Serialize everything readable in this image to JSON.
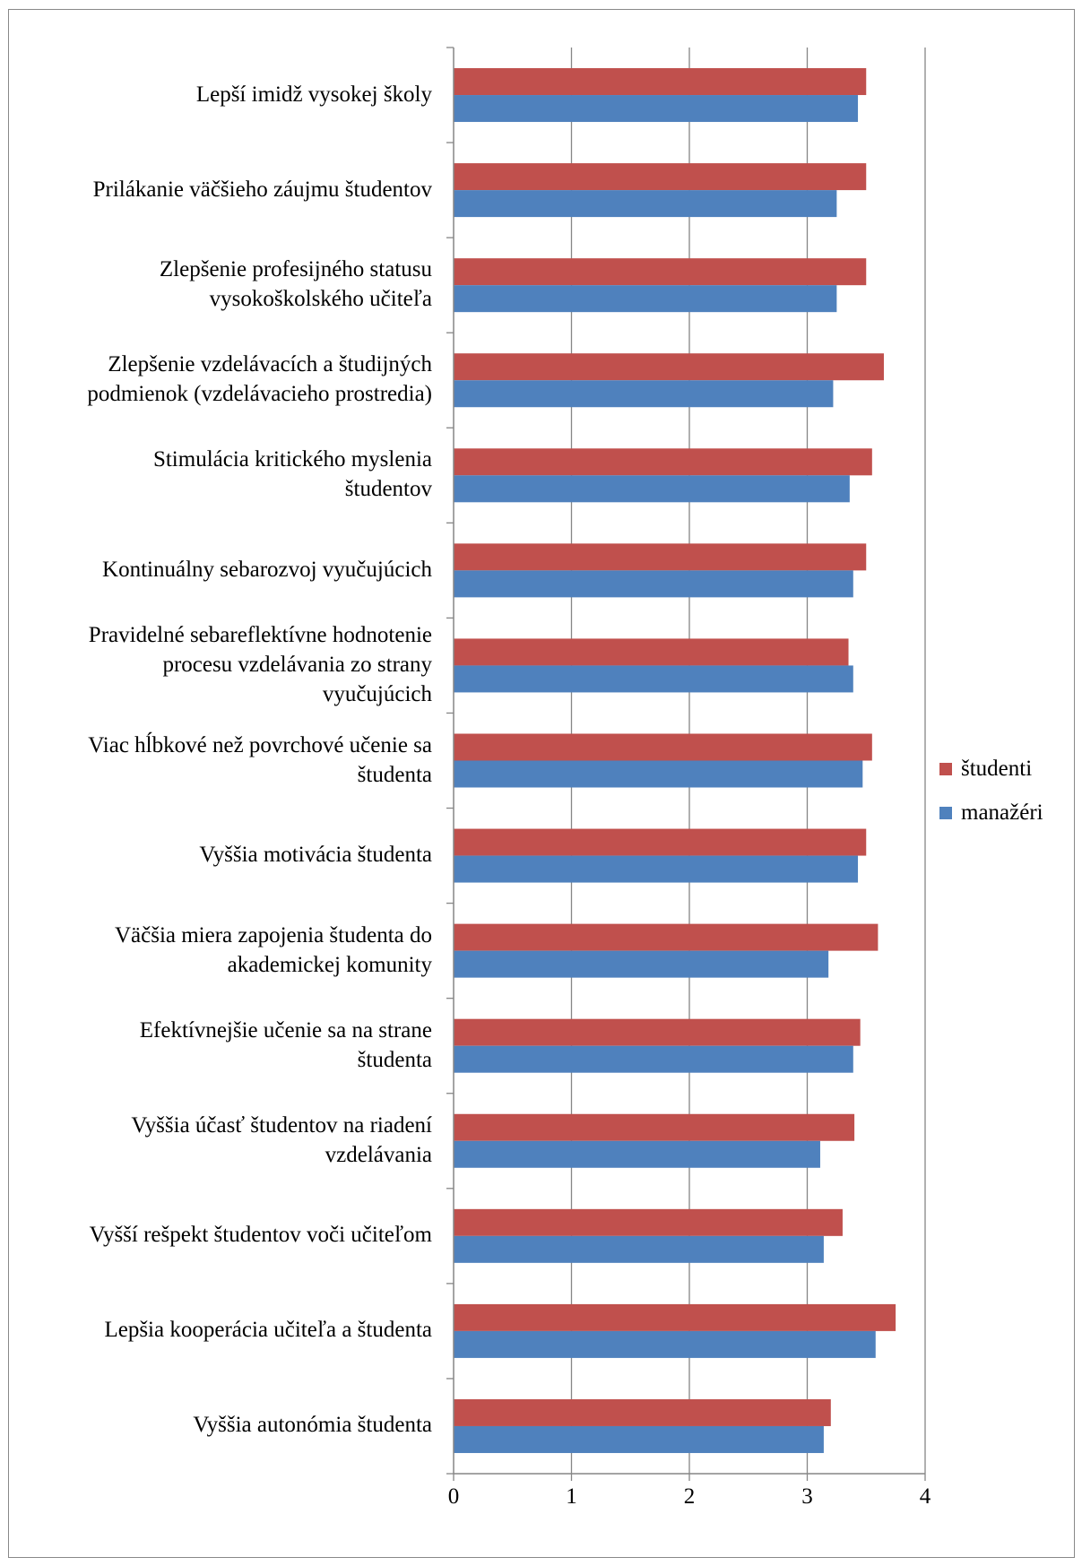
{
  "chart_data": {
    "type": "bar",
    "orientation": "horizontal",
    "categories": [
      "Lepší imidž vysokej školy",
      "Prilákanie väčšieho záujmu študentov",
      "Zlepšenie profesijného statusu\nvysokoškolského učiteľa",
      "Zlepšenie vzdelávacích a študijných\npodmienok (vzdelávacieho prostredia)",
      "Stimulácia kritického myslenia\nštudentov",
      "Kontinuálny sebarozvoj vyučujúcich",
      "Pravidelné sebareflektívne hodnotenie\nprocesu vzdelávania zo strany\nvyučujúcich",
      "Viac hĺbkové než povrchové učenie sa\nštudenta",
      "Vyššia motivácia študenta",
      "Väčšia miera zapojenia študenta  do\nakademickej komunity",
      "Efektívnejšie učenie sa na strane\nštudenta",
      "Vyššia účasť študentov na riadení\nvzdelávania",
      "Vyšší rešpekt študentov voči učiteľom",
      "Lepšia kooperácia učiteľa a študenta",
      "Vyššia autonómia študenta"
    ],
    "series": [
      {
        "name": "študenti",
        "color": "#C0504D",
        "values": [
          3.5,
          3.5,
          3.5,
          3.65,
          3.55,
          3.5,
          3.35,
          3.55,
          3.5,
          3.6,
          3.45,
          3.4,
          3.3,
          3.75,
          3.2
        ]
      },
      {
        "name": "manažéri",
        "color": "#4F81BD",
        "values": [
          3.43,
          3.25,
          3.25,
          3.22,
          3.36,
          3.39,
          3.39,
          3.47,
          3.43,
          3.18,
          3.39,
          3.11,
          3.14,
          3.58,
          3.14
        ]
      }
    ],
    "xlim": [
      0,
      4
    ],
    "xticks": [
      "0",
      "1",
      "2",
      "3",
      "4"
    ],
    "grid": true,
    "legend_position": "right"
  }
}
